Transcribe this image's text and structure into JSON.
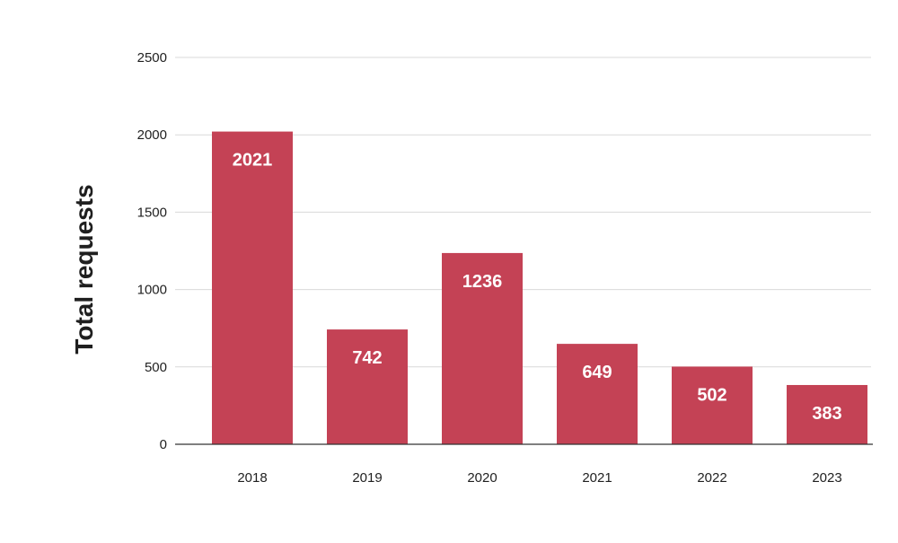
{
  "chart_data": {
    "type": "bar",
    "categories": [
      "2018",
      "2019",
      "2020",
      "2021",
      "2022",
      "2023"
    ],
    "values": [
      2021,
      742,
      1236,
      649,
      502,
      383
    ],
    "data_labels": [
      "2021",
      "742",
      "1236",
      "649",
      "502",
      "383"
    ],
    "title": "",
    "xlabel": "",
    "ylabel": "Total requests",
    "ylim": [
      0,
      2500
    ],
    "yticks": [
      0,
      500,
      1000,
      1500,
      2000,
      2500
    ],
    "ytick_labels": [
      "0",
      "500",
      "1000",
      "1500",
      "2000",
      "2500"
    ],
    "grid": true,
    "legend": "none",
    "colors": {
      "bar": "#c44255",
      "grid": "#d9d9d9",
      "axis": "#333333",
      "text": "#1f1f1f"
    }
  }
}
